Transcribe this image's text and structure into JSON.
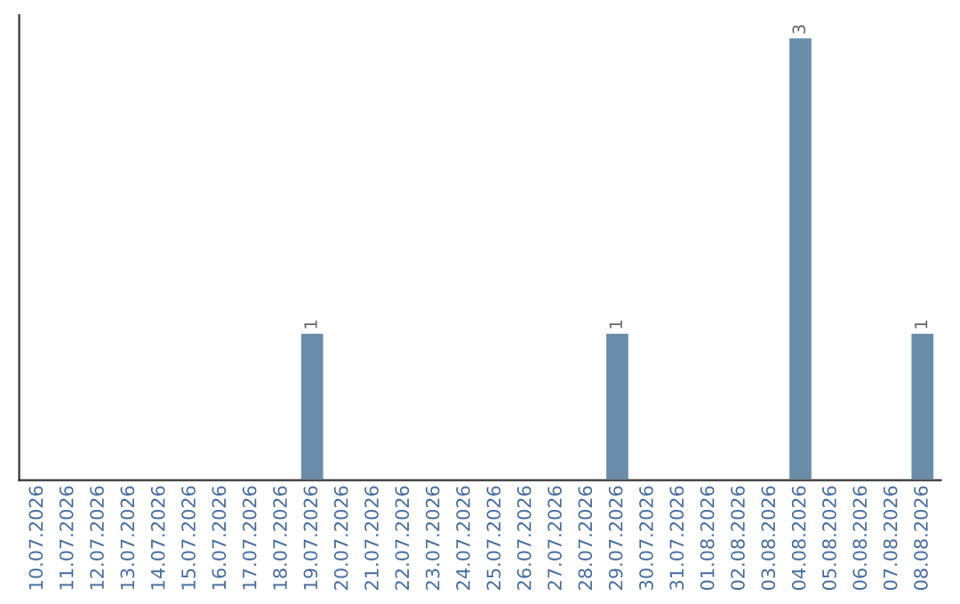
{
  "chart_data": {
    "type": "bar",
    "categories": [
      "10.07.2026",
      "11.07.2026",
      "12.07.2026",
      "13.07.2026",
      "14.07.2026",
      "15.07.2026",
      "16.07.2026",
      "17.07.2026",
      "18.07.2026",
      "19.07.2026",
      "20.07.2026",
      "21.07.2026",
      "22.07.2026",
      "23.07.2026",
      "24.07.2026",
      "25.07.2026",
      "26.07.2026",
      "27.07.2026",
      "28.07.2026",
      "29.07.2026",
      "30.07.2026",
      "31.07.2026",
      "01.08.2026",
      "02.08.2026",
      "03.08.2026",
      "04.08.2026",
      "05.08.2026",
      "06.08.2026",
      "07.08.2026",
      "08.08.2026"
    ],
    "values": [
      null,
      null,
      null,
      null,
      null,
      null,
      null,
      null,
      null,
      1,
      null,
      null,
      null,
      null,
      null,
      null,
      null,
      null,
      null,
      1,
      null,
      null,
      null,
      null,
      null,
      3,
      null,
      null,
      null,
      1
    ],
    "value_labels": [
      null,
      null,
      null,
      null,
      null,
      null,
      null,
      null,
      null,
      "1",
      null,
      null,
      null,
      null,
      null,
      null,
      null,
      null,
      null,
      "1",
      null,
      null,
      null,
      null,
      null,
      "3",
      null,
      null,
      null,
      "1"
    ],
    "color": "#6a8cab",
    "tick_labels": "x",
    "grid": false,
    "legend": false
  }
}
